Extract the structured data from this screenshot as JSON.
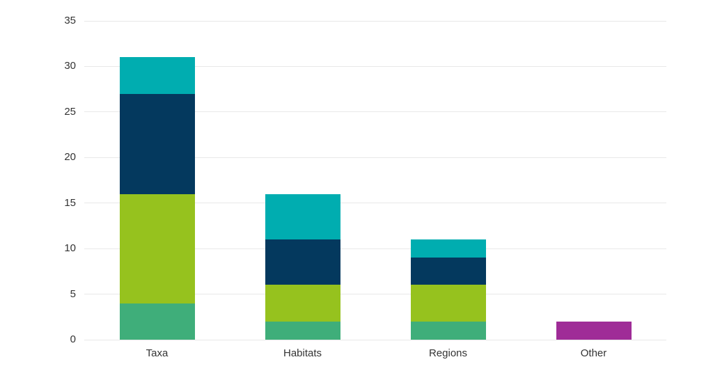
{
  "chart_data": {
    "type": "bar",
    "stacked": true,
    "title": "",
    "xlabel": "",
    "ylabel": "",
    "categories": [
      "Taxa",
      "Habitats",
      "Regions",
      "Other"
    ],
    "series": [
      {
        "name": "sea-green",
        "color": "#3fae7a",
        "values": [
          4,
          2,
          2,
          0
        ]
      },
      {
        "name": "lime-green",
        "color": "#96c21e",
        "values": [
          12,
          4,
          4,
          0
        ]
      },
      {
        "name": "navy",
        "color": "#04395e",
        "values": [
          11,
          5,
          3,
          0
        ]
      },
      {
        "name": "teal",
        "color": "#00adb0",
        "values": [
          4,
          5,
          2,
          0
        ]
      },
      {
        "name": "magenta",
        "color": "#9f2c97",
        "values": [
          0,
          0,
          0,
          2
        ]
      }
    ],
    "totals": [
      31,
      16,
      11,
      2
    ],
    "ylim": [
      0,
      35
    ],
    "yticks": [
      0,
      5,
      10,
      15,
      20,
      25,
      30,
      35
    ],
    "grid": true,
    "legend": false,
    "gridline_color": "#e8e8e8",
    "text_color": "#333333",
    "background": "#ffffff"
  }
}
